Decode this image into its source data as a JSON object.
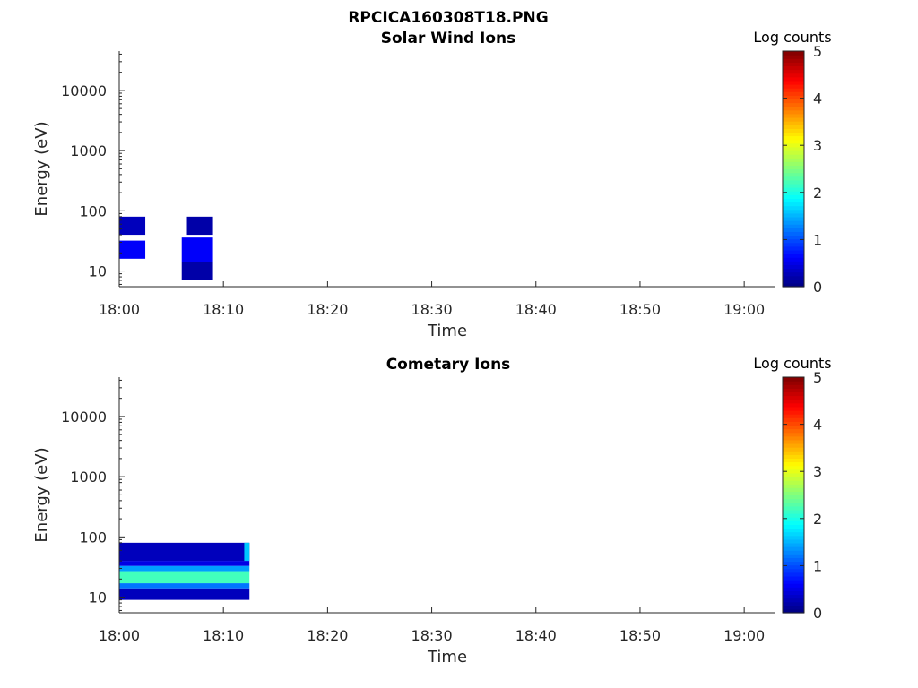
{
  "page_title": "RPCICA160308T18.PNG",
  "chart_data": [
    {
      "type": "heatmap",
      "title": "Solar Wind Ions",
      "xlabel": "Time",
      "ylabel": "Energy (eV)",
      "x_range": [
        "18:00",
        "19:03"
      ],
      "x_ticks": [
        "18:00",
        "18:10",
        "18:20",
        "18:30",
        "18:40",
        "18:50",
        "19:00"
      ],
      "y_scale": "log",
      "y_range": [
        5.5,
        45000
      ],
      "y_ticks": [
        10,
        100,
        1000,
        10000
      ],
      "y_tick_labels": [
        "10",
        "100",
        "1000",
        "10000"
      ],
      "colorbar": {
        "title": "Log counts",
        "range": [
          0,
          5
        ],
        "ticks": [
          "0",
          "1",
          "2",
          "3",
          "4",
          "5"
        ],
        "colormap": "jet"
      },
      "colormap_colors": [
        "#00007f",
        "#0000ff",
        "#007fff",
        "#00ffff",
        "#7fff7f",
        "#ffff00",
        "#ff7f00",
        "#ff0000",
        "#7f0000"
      ],
      "grid": false,
      "blocks": [
        {
          "t_start": "18:00",
          "t_end": "18:02.5",
          "e_low": 16,
          "e_high": 32,
          "log_counts": 0.6
        },
        {
          "t_start": "18:00",
          "t_end": "18:02.5",
          "e_low": 40,
          "e_high": 80,
          "log_counts": 0.3
        },
        {
          "t_start": "18:06",
          "t_end": "18:09",
          "e_low": 14,
          "e_high": 36,
          "log_counts": 0.6
        },
        {
          "t_start": "18:06",
          "t_end": "18:09",
          "e_low": 7,
          "e_high": 14,
          "log_counts": 0.2
        },
        {
          "t_start": "18:06.5",
          "t_end": "18:09",
          "e_low": 40,
          "e_high": 80,
          "log_counts": 0.2
        }
      ]
    },
    {
      "type": "heatmap",
      "title": "Cometary Ions",
      "xlabel": "Time",
      "ylabel": "Energy (eV)",
      "x_range": [
        "18:00",
        "19:03"
      ],
      "x_ticks": [
        "18:00",
        "18:10",
        "18:20",
        "18:30",
        "18:40",
        "18:50",
        "19:00"
      ],
      "y_scale": "log",
      "y_range": [
        5.5,
        45000
      ],
      "y_ticks": [
        10,
        100,
        1000,
        10000
      ],
      "y_tick_labels": [
        "10",
        "100",
        "1000",
        "10000"
      ],
      "colorbar": {
        "title": "Log counts",
        "range": [
          0,
          5
        ],
        "ticks": [
          "0",
          "1",
          "2",
          "3",
          "4",
          "5"
        ],
        "colormap": "jet"
      },
      "colormap_colors": [
        "#00007f",
        "#0000ff",
        "#007fff",
        "#00ffff",
        "#7fff7f",
        "#ffff00",
        "#ff7f00",
        "#ff0000",
        "#7f0000"
      ],
      "grid": false,
      "blocks": [
        {
          "t_start": "18:00",
          "t_end": "18:12.5",
          "e_low": 9,
          "e_high": 14,
          "log_counts": 0.3
        },
        {
          "t_start": "18:00",
          "t_end": "18:12.5",
          "e_low": 14,
          "e_high": 17,
          "log_counts": 1.2
        },
        {
          "t_start": "18:00",
          "t_end": "18:12.5",
          "e_low": 17,
          "e_high": 27,
          "log_counts": 2.2
        },
        {
          "t_start": "18:00",
          "t_end": "18:12.5",
          "e_low": 27,
          "e_high": 33,
          "log_counts": 1.4
        },
        {
          "t_start": "18:00",
          "t_end": "18:12.5",
          "e_low": 33,
          "e_high": 40,
          "log_counts": 0.5
        },
        {
          "t_start": "18:00",
          "t_end": "18:12.5",
          "e_low": 40,
          "e_high": 80,
          "log_counts": 0.3
        },
        {
          "t_start": "18:12",
          "t_end": "18:12.5",
          "e_low": 40,
          "e_high": 80,
          "log_counts": 1.6
        }
      ]
    }
  ]
}
